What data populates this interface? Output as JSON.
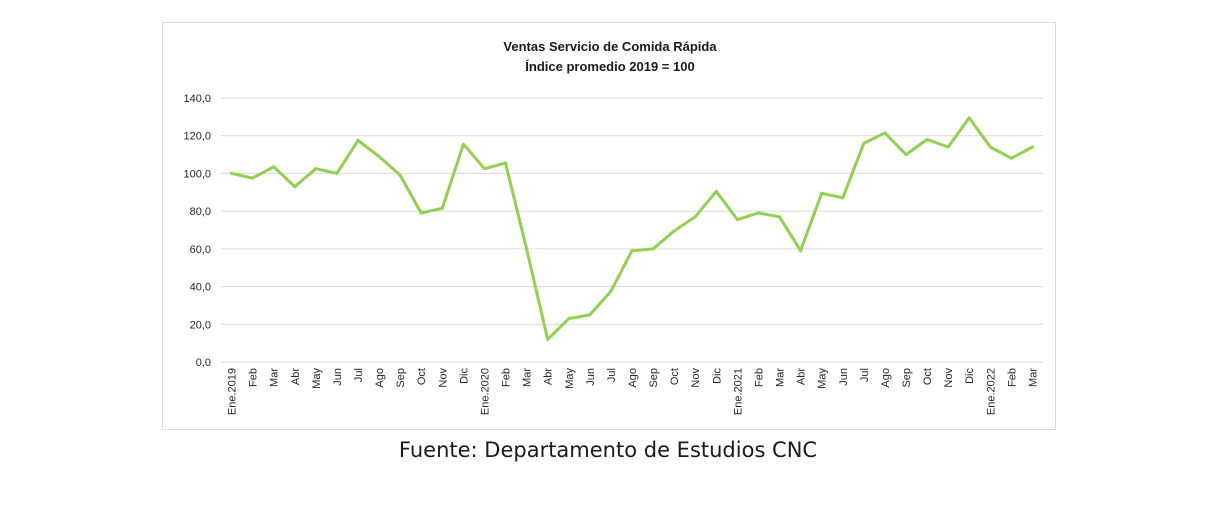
{
  "chart_data": {
    "type": "line",
    "title": "Ventas Servicio de Comida Rápida",
    "subtitle": "Índice promedio 2019 = 100",
    "xlabel": "",
    "ylabel": "",
    "ylim": [
      0,
      140
    ],
    "yticks": [
      "0,0",
      "20,0",
      "40,0",
      "60,0",
      "80,0",
      "100,0",
      "120,0",
      "140,0"
    ],
    "ytick_values": [
      0,
      20,
      40,
      60,
      80,
      100,
      120,
      140
    ],
    "grid": true,
    "legend": "none",
    "color": "#92d050",
    "categories": [
      "Ene.2019",
      "Feb",
      "Mar",
      "Abr",
      "May",
      "Jun",
      "Jul",
      "Ago",
      "Sep",
      "Oct",
      "Nov",
      "Dic",
      "Ene.2020",
      "Feb",
      "Mar",
      "Abr",
      "May",
      "Jun",
      "Jul",
      "Ago",
      "Sep",
      "Oct",
      "Nov",
      "Dic",
      "Ene.2021",
      "Feb",
      "Mar",
      "Abr",
      "May",
      "Jun",
      "Jul",
      "Ago",
      "Sep",
      "Oct",
      "Nov",
      "Dic",
      "Ene.2022",
      "Feb",
      "Mar"
    ],
    "series": [
      {
        "values": [
          100,
          97.5,
          103.5,
          93,
          102.5,
          100,
          117.5,
          109,
          99,
          79,
          81.5,
          115.5,
          102.5,
          105.5,
          60,
          12,
          23,
          25,
          37.5,
          59,
          60,
          69.5,
          77,
          90.5,
          75.5,
          79,
          77,
          59,
          89.5,
          87,
          116,
          121.5,
          110,
          118,
          114,
          129.5,
          114,
          108,
          114
        ]
      }
    ]
  },
  "source": "Fuente: Departamento de Estudios CNC"
}
